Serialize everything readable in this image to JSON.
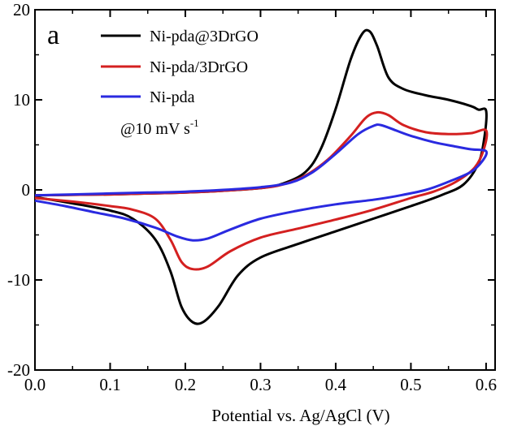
{
  "chart_data": {
    "type": "line",
    "panel_label": "a",
    "title": "",
    "xlabel": "Potential vs. Ag/AgCl (V)",
    "ylabel": "",
    "xlim": [
      0.0,
      0.612
    ],
    "ylim": [
      -20,
      20
    ],
    "xticks": [
      "0.0",
      "0.1",
      "0.2",
      "0.3",
      "0.4",
      "0.5",
      "0.6"
    ],
    "yticks": [
      "20",
      "10",
      "0",
      "-10",
      "-20"
    ],
    "grid": false,
    "legend_position": "top-left",
    "annotation": {
      "main": "@10 mV s",
      "superscript": "-1"
    },
    "series": [
      {
        "name": "Ni-pda@3DrGO",
        "color": "#000000",
        "points": [
          [
            0.0,
            -0.6
          ],
          [
            0.05,
            -0.55
          ],
          [
            0.1,
            -0.5
          ],
          [
            0.15,
            -0.4
          ],
          [
            0.2,
            -0.3
          ],
          [
            0.25,
            -0.1
          ],
          [
            0.3,
            0.2
          ],
          [
            0.33,
            0.7
          ],
          [
            0.36,
            2.0
          ],
          [
            0.38,
            4.5
          ],
          [
            0.4,
            9.0
          ],
          [
            0.42,
            14.5
          ],
          [
            0.435,
            17.3
          ],
          [
            0.445,
            17.6
          ],
          [
            0.455,
            16.0
          ],
          [
            0.47,
            12.5
          ],
          [
            0.49,
            11.2
          ],
          [
            0.52,
            10.5
          ],
          [
            0.55,
            10.0
          ],
          [
            0.58,
            9.3
          ],
          [
            0.59,
            8.9
          ],
          [
            0.6,
            8.8
          ],
          [
            0.598,
            6.0
          ],
          [
            0.59,
            3.0
          ],
          [
            0.57,
            0.6
          ],
          [
            0.54,
            -0.6
          ],
          [
            0.5,
            -1.8
          ],
          [
            0.45,
            -3.2
          ],
          [
            0.4,
            -4.6
          ],
          [
            0.35,
            -6.0
          ],
          [
            0.3,
            -7.5
          ],
          [
            0.27,
            -9.5
          ],
          [
            0.245,
            -12.8
          ],
          [
            0.225,
            -14.6
          ],
          [
            0.21,
            -14.7
          ],
          [
            0.195,
            -13.0
          ],
          [
            0.18,
            -9.0
          ],
          [
            0.16,
            -5.5
          ],
          [
            0.13,
            -3.2
          ],
          [
            0.1,
            -2.3
          ],
          [
            0.05,
            -1.5
          ],
          [
            0.0,
            -0.8
          ]
        ]
      },
      {
        "name": "Ni-pda/3DrGO",
        "color": "#d42020",
        "points": [
          [
            0.0,
            -0.6
          ],
          [
            0.05,
            -0.55
          ],
          [
            0.1,
            -0.5
          ],
          [
            0.15,
            -0.4
          ],
          [
            0.2,
            -0.3
          ],
          [
            0.25,
            -0.1
          ],
          [
            0.3,
            0.2
          ],
          [
            0.33,
            0.6
          ],
          [
            0.36,
            1.6
          ],
          [
            0.39,
            3.4
          ],
          [
            0.42,
            6.0
          ],
          [
            0.44,
            8.0
          ],
          [
            0.455,
            8.6
          ],
          [
            0.47,
            8.3
          ],
          [
            0.49,
            7.2
          ],
          [
            0.52,
            6.4
          ],
          [
            0.55,
            6.2
          ],
          [
            0.58,
            6.3
          ],
          [
            0.6,
            6.6
          ],
          [
            0.597,
            4.5
          ],
          [
            0.585,
            2.5
          ],
          [
            0.56,
            0.9
          ],
          [
            0.53,
            -0.2
          ],
          [
            0.5,
            -0.9
          ],
          [
            0.45,
            -2.2
          ],
          [
            0.4,
            -3.3
          ],
          [
            0.35,
            -4.3
          ],
          [
            0.3,
            -5.3
          ],
          [
            0.26,
            -6.8
          ],
          [
            0.23,
            -8.5
          ],
          [
            0.21,
            -8.8
          ],
          [
            0.195,
            -8.0
          ],
          [
            0.18,
            -5.5
          ],
          [
            0.16,
            -3.2
          ],
          [
            0.13,
            -2.2
          ],
          [
            0.1,
            -1.8
          ],
          [
            0.05,
            -1.3
          ],
          [
            0.0,
            -0.9
          ]
        ]
      },
      {
        "name": "Ni-pda",
        "color": "#2a2ae0",
        "points": [
          [
            0.0,
            -0.6
          ],
          [
            0.05,
            -0.5
          ],
          [
            0.1,
            -0.4
          ],
          [
            0.15,
            -0.3
          ],
          [
            0.2,
            -0.2
          ],
          [
            0.25,
            0.0
          ],
          [
            0.3,
            0.3
          ],
          [
            0.34,
            0.8
          ],
          [
            0.37,
            2.0
          ],
          [
            0.4,
            4.0
          ],
          [
            0.43,
            6.2
          ],
          [
            0.45,
            7.1
          ],
          [
            0.46,
            7.2
          ],
          [
            0.48,
            6.6
          ],
          [
            0.5,
            6.0
          ],
          [
            0.53,
            5.3
          ],
          [
            0.56,
            4.8
          ],
          [
            0.58,
            4.5
          ],
          [
            0.6,
            4.3
          ],
          [
            0.595,
            3.2
          ],
          [
            0.58,
            2.0
          ],
          [
            0.55,
            0.9
          ],
          [
            0.52,
            0.0
          ],
          [
            0.48,
            -0.7
          ],
          [
            0.45,
            -1.1
          ],
          [
            0.4,
            -1.6
          ],
          [
            0.35,
            -2.3
          ],
          [
            0.3,
            -3.2
          ],
          [
            0.26,
            -4.4
          ],
          [
            0.23,
            -5.4
          ],
          [
            0.21,
            -5.6
          ],
          [
            0.19,
            -5.2
          ],
          [
            0.16,
            -4.2
          ],
          [
            0.12,
            -3.2
          ],
          [
            0.08,
            -2.5
          ],
          [
            0.04,
            -1.8
          ],
          [
            0.0,
            -1.2
          ]
        ]
      }
    ]
  }
}
